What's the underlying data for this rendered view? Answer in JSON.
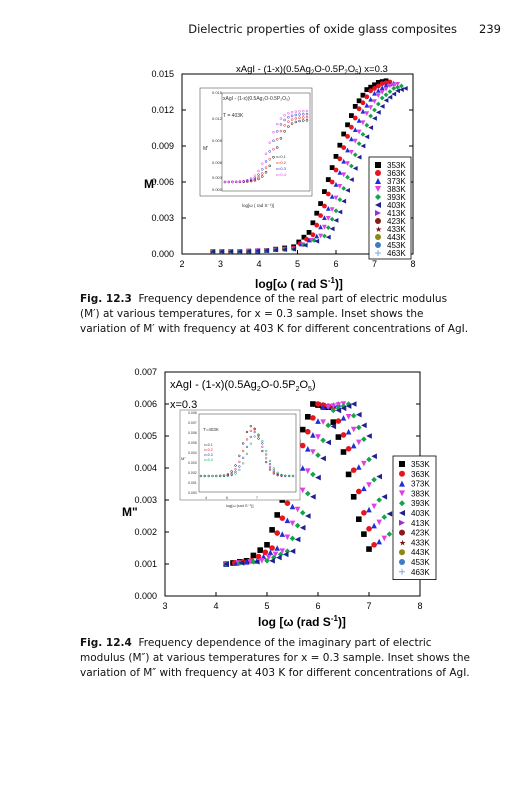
{
  "header": {
    "title": "Dielectric properties of oxide glass composites",
    "page_number": "239"
  },
  "colors": {
    "353K": "#000000",
    "363K": "#e8141e",
    "373K": "#1f2fd6",
    "383K": "#e040e0",
    "393K": "#16a34a",
    "403K": "#202090",
    "413K": "#9b2fd0",
    "423K": "#8b1a1a",
    "433K": "#7a1010",
    "443K": "#8a8a10",
    "453K": "#3b7dc4",
    "463K": "#7aa7e8"
  },
  "figures": [
    {
      "caption_label": "Fig. 12.3",
      "caption_text": "Frequency dependence of the real part of electric modulus (M′) at various temperatures, for x = 0.3 sample. Inset shows the variation of M′ with frequency at 403 K for different concentrations of AgI."
    },
    {
      "caption_label": "Fig. 12.4",
      "caption_text": "Frequency dependence of the imaginary part of electric modulus (M″) at various temperatures for x = 0.3 sample. Inset shows the variation of M″ with frequency at 403 K for different concentrations of AgI."
    }
  ],
  "chart_data": [
    {
      "type": "scatter",
      "title": "xAgI - (1-x)(0.5Ag₂O-0.5P₂O₅)  x=0.3",
      "xlabel": "log[ω ( rad S⁻¹)]",
      "ylabel": "M'",
      "xlim": [
        2,
        8
      ],
      "ylim": [
        0,
        0.015
      ],
      "xticks": [
        2,
        3,
        4,
        5,
        6,
        7,
        8
      ],
      "yticks": [
        0.0,
        0.003,
        0.006,
        0.009,
        0.012,
        0.015
      ],
      "ytick_labels": [
        "0.000",
        "0.003",
        "0.006",
        "0.009",
        "0.012",
        "0.015"
      ],
      "legend": [
        "353K",
        "363K",
        "373K",
        "383K",
        "393K",
        "403K",
        "413K",
        "423K",
        "433K",
        "443K",
        "453K",
        "463K"
      ],
      "markers": [
        "square",
        "circle",
        "triangle-up",
        "triangle-down",
        "diamond",
        "triangle-left",
        "triangle-right",
        "hexagon",
        "star",
        "circle",
        "circle",
        "plus"
      ],
      "legend_position": "right",
      "series": [
        {
          "name": "353K",
          "x": [
            2.8,
            3.5,
            4.2,
            4.9,
            5.3,
            5.6,
            5.9,
            6.2,
            6.5,
            6.8,
            7.1,
            7.4
          ],
          "y": [
            0.0002,
            0.0002,
            0.0003,
            0.0006,
            0.0018,
            0.0042,
            0.0072,
            0.01,
            0.0123,
            0.0137,
            0.0143,
            0.0145
          ]
        },
        {
          "name": "363K",
          "x": [
            2.8,
            3.5,
            4.2,
            4.9,
            5.4,
            5.7,
            6.0,
            6.3,
            6.6,
            6.9,
            7.2,
            7.5
          ],
          "y": [
            0.0002,
            0.0002,
            0.0003,
            0.0005,
            0.0016,
            0.004,
            0.007,
            0.0098,
            0.0121,
            0.0136,
            0.0142,
            0.0144
          ]
        },
        {
          "name": "373K",
          "x": [
            2.8,
            3.5,
            4.2,
            4.9,
            5.5,
            5.8,
            6.1,
            6.4,
            6.7,
            7.0,
            7.3,
            7.6
          ],
          "y": [
            0.0002,
            0.0002,
            0.0003,
            0.0005,
            0.0015,
            0.0038,
            0.0068,
            0.0096,
            0.0119,
            0.0134,
            0.0141,
            0.0143
          ]
        },
        {
          "name": "383K",
          "x": [
            2.8,
            3.5,
            4.2,
            4.9,
            5.6,
            5.9,
            6.2,
            6.5,
            6.8,
            7.1,
            7.4,
            7.7
          ],
          "y": [
            0.0002,
            0.0002,
            0.0003,
            0.0004,
            0.0015,
            0.0037,
            0.0066,
            0.0094,
            0.0117,
            0.0132,
            0.014,
            0.0142
          ]
        },
        {
          "name": "393K",
          "x": [
            2.8,
            3.5,
            4.2,
            4.9,
            5.7,
            6.0,
            6.3,
            6.6,
            6.9,
            7.2,
            7.5,
            7.8
          ],
          "y": [
            0.0002,
            0.0002,
            0.0003,
            0.0004,
            0.0015,
            0.0036,
            0.0064,
            0.0092,
            0.0115,
            0.013,
            0.0138,
            0.0141
          ]
        },
        {
          "name": "403K",
          "x": [
            2.8,
            3.5,
            4.2,
            4.9,
            5.8,
            6.1,
            6.4,
            6.7,
            7.0,
            7.3,
            7.6,
            7.9
          ],
          "y": [
            0.0002,
            0.0002,
            0.0003,
            0.0004,
            0.0014,
            0.0035,
            0.0062,
            0.009,
            0.0113,
            0.0128,
            0.0136,
            0.0139
          ]
        }
      ]
    },
    {
      "type": "scatter",
      "title": "xAgI - (1-x)(0.5Ag₂O-0.5P₂O₅)  x=0.3",
      "xlabel": "log [ω (rad S⁻¹)]",
      "ylabel": "M\"",
      "xlim": [
        3,
        8
      ],
      "ylim": [
        0,
        0.007
      ],
      "xticks": [
        3,
        4,
        5,
        6,
        7,
        8
      ],
      "yticks": [
        0.0,
        0.001,
        0.002,
        0.003,
        0.004,
        0.005,
        0.006,
        0.007
      ],
      "ytick_labels": [
        "0.000",
        "0.001",
        "0.002",
        "0.003",
        "0.004",
        "0.005",
        "0.006",
        "0.007"
      ],
      "legend": [
        "353K",
        "363K",
        "373K",
        "383K",
        "393K",
        "403K",
        "413K",
        "423K",
        "433K",
        "443K",
        "453K",
        "463K"
      ],
      "legend_position": "right",
      "series": [
        {
          "name": "353K",
          "x": [
            4.2,
            4.6,
            5.0,
            5.3,
            5.6,
            5.9,
            6.2,
            6.5,
            6.8,
            7.1
          ],
          "y": [
            0.001,
            0.0011,
            0.0016,
            0.003,
            0.0048,
            0.006,
            0.0059,
            0.0045,
            0.0024,
            0.001
          ]
        },
        {
          "name": "363K",
          "x": [
            4.2,
            4.7,
            5.1,
            5.4,
            5.7,
            6.0,
            6.3,
            6.6,
            6.9,
            7.2
          ],
          "y": [
            0.001,
            0.0011,
            0.0015,
            0.0029,
            0.0047,
            0.006,
            0.0059,
            0.0046,
            0.0026,
            0.0011
          ]
        },
        {
          "name": "373K",
          "x": [
            4.2,
            4.8,
            5.2,
            5.5,
            5.8,
            6.1,
            6.4,
            6.7,
            7.0,
            7.3
          ],
          "y": [
            0.001,
            0.0011,
            0.0015,
            0.0028,
            0.0046,
            0.0059,
            0.006,
            0.0047,
            0.0027,
            0.0012
          ]
        },
        {
          "name": "383K",
          "x": [
            4.2,
            4.9,
            5.3,
            5.6,
            5.9,
            6.2,
            6.5,
            6.8,
            7.1,
            7.4
          ],
          "y": [
            0.001,
            0.0011,
            0.0014,
            0.0027,
            0.0045,
            0.0059,
            0.006,
            0.0048,
            0.0028,
            0.0013
          ]
        },
        {
          "name": "393K",
          "x": [
            4.2,
            5.0,
            5.4,
            5.7,
            6.0,
            6.3,
            6.6,
            6.9,
            7.2,
            7.5
          ],
          "y": [
            0.001,
            0.0011,
            0.0014,
            0.0026,
            0.0044,
            0.0058,
            0.006,
            0.0049,
            0.003,
            0.0014
          ]
        },
        {
          "name": "403K",
          "x": [
            4.2,
            5.1,
            5.5,
            5.8,
            6.1,
            6.4,
            6.7,
            7.0,
            7.3,
            7.6
          ],
          "y": [
            0.001,
            0.0011,
            0.0014,
            0.0025,
            0.0043,
            0.0058,
            0.006,
            0.005,
            0.0031,
            0.0015
          ]
        }
      ]
    }
  ]
}
